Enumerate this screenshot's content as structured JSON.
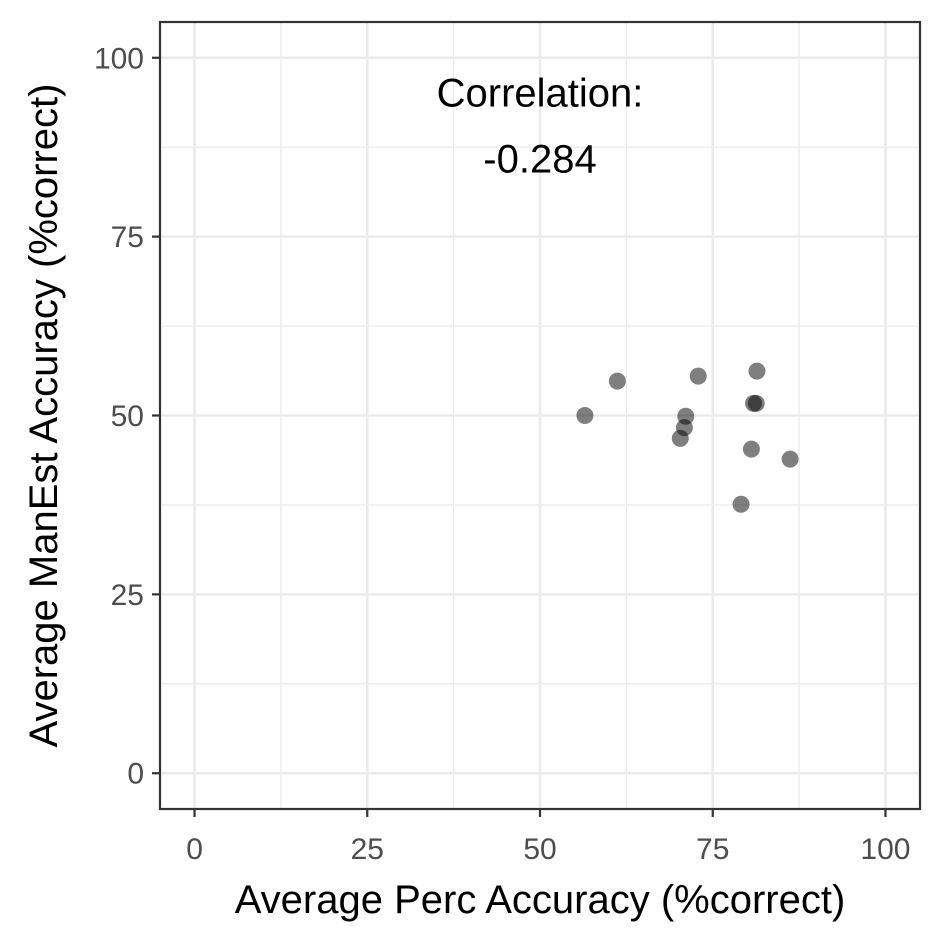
{
  "chart_data": {
    "type": "scatter",
    "xlabel": "Average Perc Accuracy (%correct)",
    "ylabel": "Average ManEst Accuracy (%correct)",
    "xlim": [
      -5,
      105
    ],
    "ylim": [
      -5,
      105
    ],
    "x_ticks": [
      0,
      25,
      50,
      75,
      100
    ],
    "y_ticks": [
      0,
      25,
      50,
      75,
      100
    ],
    "x_tick_labels": [
      "0",
      "25",
      "50",
      "75",
      "100"
    ],
    "y_tick_labels": [
      "0",
      "25",
      "50",
      "75",
      "100"
    ],
    "grid": true,
    "point_color": "#000000",
    "point_opacity": 0.5,
    "annotation": {
      "line1": "Correlation:",
      "line2": "-0.284",
      "x": 50,
      "y": 95
    },
    "points": [
      {
        "x": 56.5,
        "y": 50.0
      },
      {
        "x": 61.2,
        "y": 54.8
      },
      {
        "x": 70.3,
        "y": 46.8
      },
      {
        "x": 70.9,
        "y": 48.3
      },
      {
        "x": 71.1,
        "y": 49.9
      },
      {
        "x": 72.9,
        "y": 55.5
      },
      {
        "x": 79.1,
        "y": 37.6
      },
      {
        "x": 80.6,
        "y": 45.3
      },
      {
        "x": 80.9,
        "y": 51.7
      },
      {
        "x": 81.3,
        "y": 51.7
      },
      {
        "x": 81.4,
        "y": 56.2
      },
      {
        "x": 86.2,
        "y": 43.9
      }
    ]
  }
}
